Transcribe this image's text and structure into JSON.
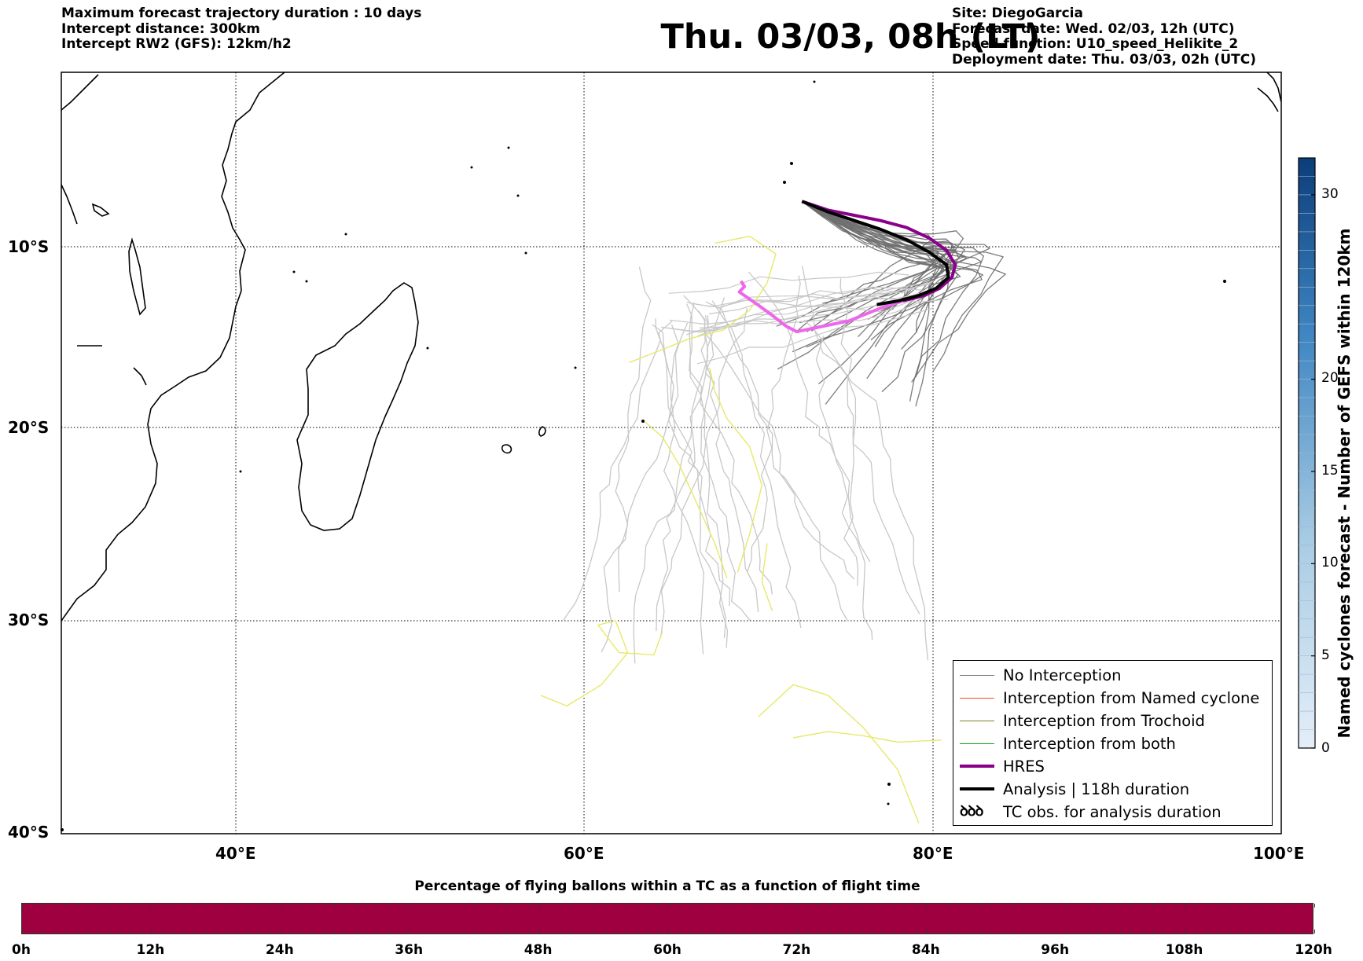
{
  "header": {
    "left": [
      "Maximum forecast trajectory duration : 10 days",
      "Intercept distance: 300km",
      "Intercept RW2 (GFS):  12km/h2"
    ],
    "title": "Thu. 03/03, 08h (LT)",
    "right": [
      "Site: DiegoGarcia",
      "Forecast date: Wed. 02/03, 12h (UTC)",
      "Speed function: U10_speed_Helikite_2",
      "Deployment date: Thu. 03/03, 02h (UTC)"
    ]
  },
  "map": {
    "lon_range": [
      30,
      100
    ],
    "lat_range": [
      -40,
      0
    ],
    "lat_labels": [
      "10°S",
      "20°S",
      "30°S",
      "40°S"
    ],
    "lat_values": [
      -10,
      -20,
      -30,
      -40
    ],
    "lon_labels": [
      "40°E",
      "60°E",
      "80°E",
      "100°E"
    ],
    "lon_values": [
      40,
      60,
      80,
      100
    ]
  },
  "trajectories": {
    "hres": {
      "color": "#8b008b",
      "color_late": "#ee66ee",
      "points": [
        [
          72.5,
          -7.4
        ],
        [
          74,
          -7.9
        ],
        [
          75.5,
          -8.2
        ],
        [
          77,
          -8.5
        ],
        [
          78.5,
          -8.9
        ],
        [
          79.8,
          -9.5
        ],
        [
          80.8,
          -10.2
        ],
        [
          81.3,
          -11
        ],
        [
          81.1,
          -11.7
        ],
        [
          80.4,
          -12.3
        ],
        [
          79.5,
          -12.7
        ],
        [
          78.3,
          -13
        ],
        [
          77,
          -13.4
        ],
        [
          75.2,
          -14.1
        ],
        [
          73.2,
          -14.5
        ],
        [
          72.2,
          -14.7
        ],
        [
          71.6,
          -14.4
        ],
        [
          70.8,
          -13.8
        ],
        [
          69.8,
          -13.1
        ],
        [
          68.9,
          -12.5
        ],
        [
          69.2,
          -12.2
        ],
        [
          69,
          -11.9
        ]
      ]
    },
    "analysis": {
      "color": "#000000",
      "points": [
        [
          72.5,
          -7.4
        ],
        [
          74,
          -8
        ],
        [
          75.5,
          -8.5
        ],
        [
          77,
          -9
        ],
        [
          78.5,
          -9.6
        ],
        [
          79.8,
          -10.3
        ],
        [
          80.8,
          -11
        ],
        [
          80.9,
          -11.7
        ],
        [
          80.2,
          -12.3
        ],
        [
          79.2,
          -12.7
        ],
        [
          78,
          -13
        ],
        [
          76.8,
          -13.2
        ]
      ]
    },
    "no_interception_color": "#6e6e6e",
    "late_color": "#c8c8c8",
    "trochoid_color": "#e8e86a"
  },
  "legend": {
    "items": [
      {
        "label": "No Interception",
        "color": "#777777",
        "width": 1.5
      },
      {
        "label": "Interception from Named cyclone",
        "color": "#ff4a1c",
        "width": 1.5
      },
      {
        "label": "Interception from Trochoid",
        "color": "#808020",
        "width": 1.5
      },
      {
        "label": "Interception from both",
        "color": "#1a9a1a",
        "width": 1.5
      },
      {
        "label": "HRES",
        "color": "#8b008b",
        "width": 4
      },
      {
        "label": "Analysis | 118h duration",
        "color": "#000000",
        "width": 4
      }
    ],
    "tc_symbol": "ꝺꝺꝺ",
    "tc_label": "TC obs. for analysis duration"
  },
  "colorbar": {
    "label": "Named cyclones forecast - Number of GEFS within 120km",
    "ticks": [
      0,
      5,
      10,
      15,
      20,
      30
    ],
    "range": [
      0,
      32
    ],
    "color_low": "#dce9f6",
    "color_high": "#0b3d7a"
  },
  "bottom": {
    "title": "Percentage of flying ballons within a TC as a function of flight time",
    "bar_color": "#9e0040",
    "hour_labels": [
      "0h",
      "12h",
      "24h",
      "36h",
      "48h",
      "60h",
      "72h",
      "84h",
      "96h",
      "108h",
      "120h"
    ]
  }
}
